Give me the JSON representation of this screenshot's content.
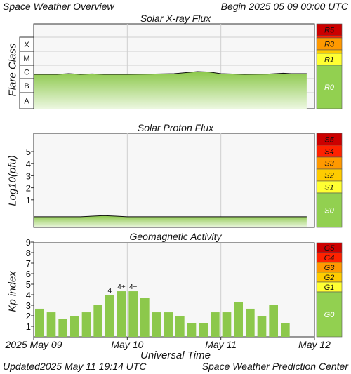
{
  "header": {
    "title": "Space Weather Overview",
    "begin_label": "Begin",
    "begin_value": "2025 05 09 00:00 UTC"
  },
  "footer": {
    "updated_label": "Updated",
    "updated_value": "2025 May 11 19:14 UTC",
    "source": "Space Weather Prediction Center"
  },
  "x_axis": {
    "label": "Universal Time",
    "tick_labels": [
      "2025 May 09",
      "May 10",
      "May 11",
      "May 12"
    ],
    "range_hours": [
      0,
      72
    ]
  },
  "colors": {
    "fill": "#8cc84b",
    "plot_bg": "#f7f7f7",
    "extreme": "#cc0000",
    "severe": "#ff2200",
    "strong": "#ff9900",
    "moderate": "#ffcc00",
    "minor": "#ffff33",
    "none": "#92d050"
  },
  "chart_data": [
    {
      "type": "area",
      "title": "Solar X-ray Flux",
      "ylabel": "Flare Class",
      "y_classes": [
        "A",
        "B",
        "C",
        "M",
        "X"
      ],
      "scale_labels": [
        "R5",
        "R3",
        "R1",
        "R0"
      ],
      "x_hours": [
        0,
        6,
        9,
        12,
        15,
        18,
        24,
        30,
        36,
        42,
        45,
        48,
        54,
        60,
        64,
        66,
        70
      ],
      "y_log10_flux": [
        -6.6,
        -6.6,
        -6.55,
        -6.6,
        -6.57,
        -6.6,
        -6.6,
        -6.58,
        -6.55,
        -6.4,
        -6.43,
        -6.55,
        -6.6,
        -6.58,
        -6.52,
        -6.55,
        -6.55
      ]
    },
    {
      "type": "area",
      "title": "Solar Proton Flux",
      "ylabel": "Log10(pfu)",
      "y_ticks": [
        1,
        2,
        3,
        4,
        5
      ],
      "scale_labels": [
        "S5",
        "S4",
        "S3",
        "S2",
        "S1",
        "S0"
      ],
      "x_hours": [
        0,
        12,
        18,
        21,
        24,
        36,
        48,
        60,
        70
      ],
      "y_log10_pfu": [
        -0.4,
        -0.4,
        -0.3,
        -0.35,
        -0.4,
        -0.4,
        -0.4,
        -0.4,
        -0.4
      ]
    },
    {
      "type": "bar",
      "title": "Geomagnetic Activity",
      "ylabel": "Kp index",
      "y_ticks": [
        1,
        2,
        3,
        4,
        5,
        6,
        7,
        8,
        9
      ],
      "scale_labels": [
        "G5",
        "G4",
        "G3",
        "G2",
        "G1",
        "G0"
      ],
      "bar_width_hours": 3,
      "values": [
        2.67,
        2.33,
        1.67,
        2.0,
        2.33,
        3.0,
        4.0,
        4.33,
        4.33,
        3.67,
        2.33,
        2.33,
        2.0,
        1.33,
        1.33,
        2.33,
        2.33,
        3.33,
        2.67,
        2.0,
        3.0,
        1.33
      ],
      "data_labels": [
        "",
        "",
        "",
        "",
        "",
        "",
        "4",
        "4+",
        "4+",
        "",
        "",
        "",
        "",
        "",
        "",
        "",
        "",
        "",
        "",
        "",
        "",
        ""
      ]
    }
  ]
}
